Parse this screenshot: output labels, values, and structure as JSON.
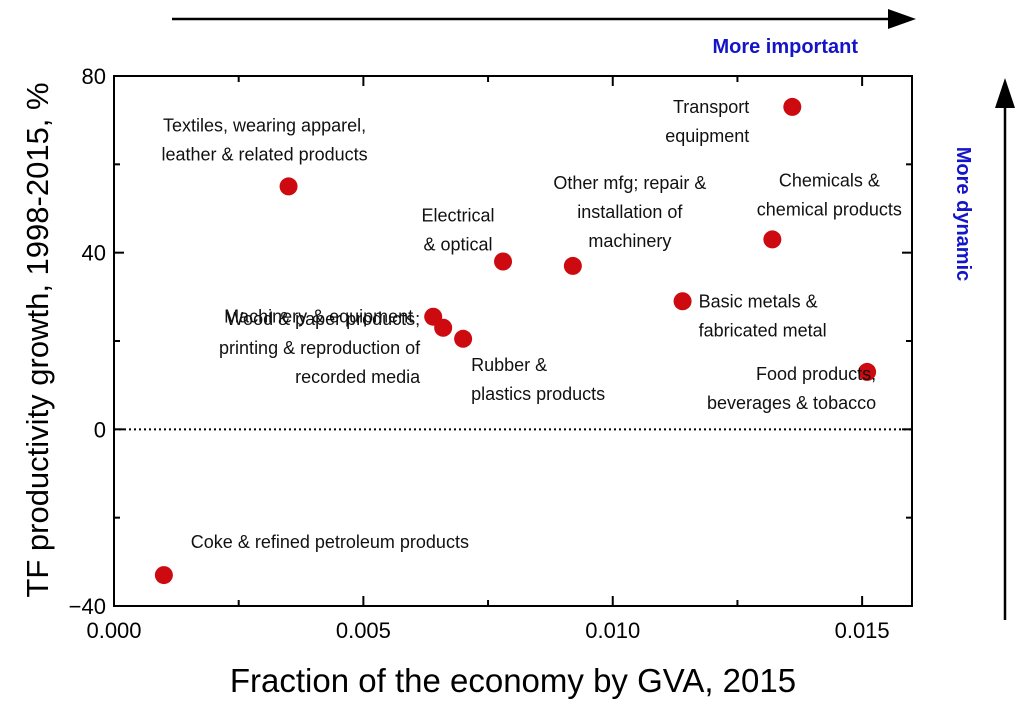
{
  "chart_data": {
    "type": "scatter",
    "xlabel": "Fraction of the economy by GVA, 2015",
    "ylabel": "TF productivity growth, 1998-2015, %",
    "xlim": [
      0.0,
      0.016
    ],
    "ylim": [
      -40,
      80
    ],
    "x_ticks": [
      "0.000",
      "0.005",
      "0.010",
      "0.015"
    ],
    "x_tick_values": [
      0.0,
      0.005,
      0.01,
      0.015
    ],
    "y_ticks": [
      "80",
      "40",
      "0",
      "−40"
    ],
    "y_tick_values": [
      80,
      40,
      0,
      -40
    ],
    "zero_line": "dotted",
    "grid": false,
    "marker_color": "#cc0a0f",
    "annotation_color": "#1414c8",
    "annotations": {
      "x_arrow": "More important",
      "y_arrow": "More dynamic"
    },
    "points": [
      {
        "x": 0.0035,
        "y": 55,
        "label": [
          "Textiles, wearing apparel,",
          "leather & related products"
        ]
      },
      {
        "x": 0.0136,
        "y": 73,
        "label": [
          "Transport",
          "equipment"
        ]
      },
      {
        "x": 0.0092,
        "y": 37,
        "label": [
          "Other mfg; repair &",
          "installation of",
          "machinery"
        ]
      },
      {
        "x": 0.0132,
        "y": 43,
        "label": [
          "Chemicals &",
          "chemical products"
        ]
      },
      {
        "x": 0.0078,
        "y": 38,
        "label": [
          "Electrical",
          "& optical"
        ]
      },
      {
        "x": 0.0114,
        "y": 29,
        "label": [
          "Basic metals &",
          "fabricated metal"
        ]
      },
      {
        "x": 0.0064,
        "y": 25.5,
        "label": [
          "Machinery & equipment"
        ]
      },
      {
        "x": 0.0066,
        "y": 23,
        "label": [
          "Wood & paper products;",
          "printing & reproduction of",
          "recorded media"
        ]
      },
      {
        "x": 0.007,
        "y": 20.5,
        "label": [
          "Rubber &",
          "plastics products"
        ]
      },
      {
        "x": 0.0151,
        "y": 13,
        "label": [
          "Food products,",
          "beverages & tobacco"
        ]
      },
      {
        "x": 0.001,
        "y": -33,
        "label": [
          "Coke & refined petroleum products"
        ]
      }
    ]
  }
}
